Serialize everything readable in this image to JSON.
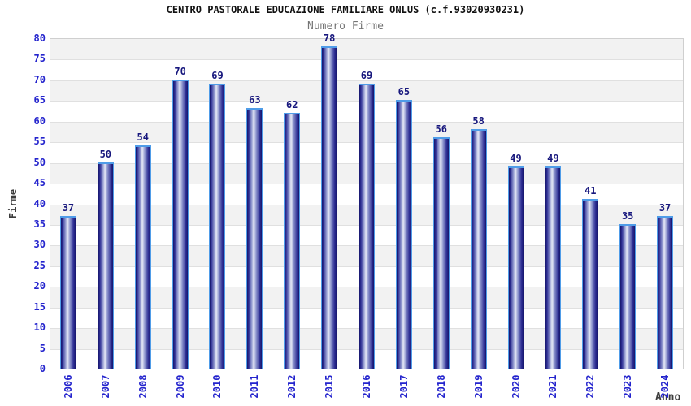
{
  "chart_data": {
    "type": "bar",
    "title": "CENTRO PASTORALE EDUCAZIONE FAMILIARE ONLUS (c.f.93020930231)",
    "subtitle": "Numero Firme",
    "xlabel": "Anno",
    "ylabel": "Firme",
    "categories": [
      "2006",
      "2007",
      "2008",
      "2009",
      "2010",
      "2011",
      "2012",
      "2015",
      "2016",
      "2017",
      "2018",
      "2019",
      "2020",
      "2021",
      "2022",
      "2023",
      "2024"
    ],
    "values": [
      37,
      50,
      54,
      70,
      69,
      63,
      62,
      78,
      69,
      65,
      56,
      58,
      49,
      49,
      41,
      35,
      37
    ],
    "ylim": [
      0,
      80
    ],
    "ytick_step": 5,
    "grid": "horizontal-bands",
    "legend": "none",
    "bar_value_labels_shown": true,
    "colors": {
      "title": "#111111",
      "subtitle": "#757575",
      "tick_labels": "#2424cd",
      "value_labels": "#17177d",
      "axis_titles": "#3c3c3c",
      "band_gray": "#f2f2f2",
      "band_white": "#ffffff",
      "gridline": "#e0e0e0",
      "plot_border": "#cfcfcf",
      "bar_dark": "#15156b",
      "bar_mid": "#2e2e94",
      "bar_light_mid": "#8c94cd",
      "bar_highlight": "#e6e9f6",
      "bar_outline": "#4f9ce8"
    }
  }
}
